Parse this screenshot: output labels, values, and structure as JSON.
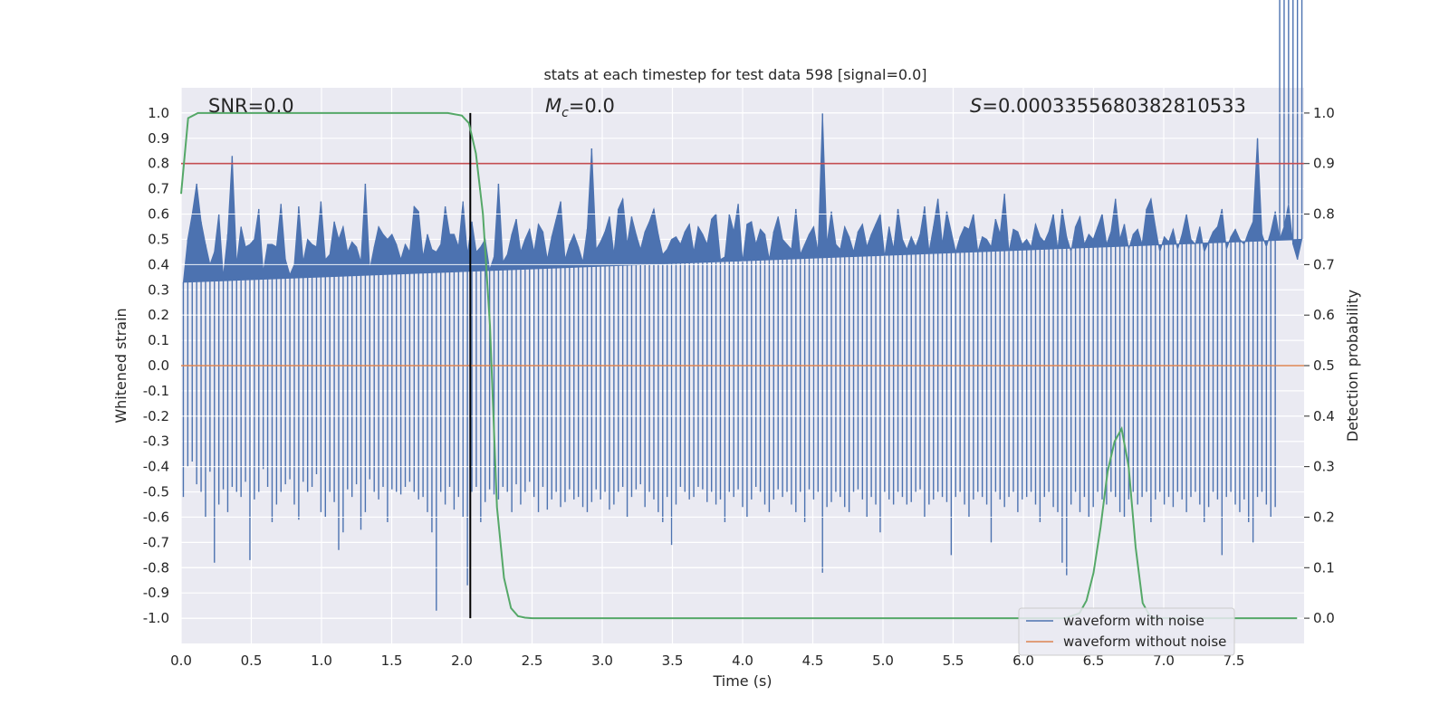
{
  "chart_data": {
    "type": "line",
    "title": "stats at each timestep for test data 598 [signal=0.0]",
    "xlabel": "Time (s)",
    "ylabel": "Whitened strain",
    "y2label": "Detection probability",
    "xlim": [
      0.0,
      8.0
    ],
    "ylim": [
      -1.1,
      1.1
    ],
    "y2lim": [
      -0.05,
      1.05
    ],
    "xticks": [
      "0.0",
      "0.5",
      "1.0",
      "1.5",
      "2.0",
      "2.5",
      "3.0",
      "3.5",
      "4.0",
      "4.5",
      "5.0",
      "5.5",
      "6.0",
      "6.5",
      "7.0",
      "7.5"
    ],
    "yticks": [
      "1.0",
      "0.9",
      "0.8",
      "0.7",
      "0.6",
      "0.5",
      "0.4",
      "0.3",
      "0.2",
      "0.1",
      "0.0",
      "-0.1",
      "-0.2",
      "-0.3",
      "-0.4",
      "-0.5",
      "-0.6",
      "-0.7",
      "-0.8",
      "-0.9",
      "-1.0"
    ],
    "y2ticks": [
      "1.0",
      "0.9",
      "0.8",
      "0.7",
      "0.6",
      "0.5",
      "0.4",
      "0.3",
      "0.2",
      "0.1",
      "0.0"
    ],
    "annotations": {
      "snr": "SNR=0.0",
      "mc_symbol": "M",
      "mc_sub": "c",
      "mc_value": "=0.0",
      "s_symbol": "S",
      "s_value": "=0.0003355680382810533"
    },
    "threshold": {
      "name": "threshold",
      "y2": 0.9,
      "color": "#c44e52"
    },
    "marker_line": {
      "name": "marker",
      "x": 2.06,
      "color": "#000000"
    },
    "noise_envelope": {
      "name": "waveform with noise",
      "color": "#4c72b0",
      "top": [
        0.33,
        0.5,
        0.6,
        0.72,
        0.57,
        0.48,
        0.4,
        0.45,
        0.6,
        0.35,
        0.52,
        0.83,
        0.4,
        0.55,
        0.47,
        0.48,
        0.5,
        0.62,
        0.37,
        0.48,
        0.48,
        0.47,
        0.64,
        0.42,
        0.36,
        0.4,
        0.63,
        0.41,
        0.5,
        0.48,
        0.47,
        0.65,
        0.42,
        0.44,
        0.57,
        0.5,
        0.55,
        0.45,
        0.49,
        0.47,
        0.41,
        0.72,
        0.38,
        0.47,
        0.55,
        0.52,
        0.5,
        0.52,
        0.48,
        0.42,
        0.48,
        0.45,
        0.63,
        0.61,
        0.43,
        0.52,
        0.46,
        0.45,
        0.48,
        0.63,
        0.52,
        0.52,
        0.47,
        0.65,
        0.44,
        0.57,
        0.45,
        0.47,
        0.5,
        0.38,
        0.43,
        0.72,
        0.41,
        0.44,
        0.52,
        0.58,
        0.45,
        0.5,
        0.54,
        0.45,
        0.56,
        0.53,
        0.42,
        0.51,
        0.58,
        0.65,
        0.42,
        0.48,
        0.52,
        0.47,
        0.41,
        0.54,
        0.86,
        0.46,
        0.49,
        0.53,
        0.59,
        0.44,
        0.62,
        0.66,
        0.48,
        0.59,
        0.52,
        0.46,
        0.53,
        0.57,
        0.62,
        0.52,
        0.44,
        0.46,
        0.5,
        0.51,
        0.48,
        0.53,
        0.56,
        0.45,
        0.55,
        0.52,
        0.48,
        0.58,
        0.6,
        0.42,
        0.43,
        0.6,
        0.53,
        0.64,
        0.41,
        0.56,
        0.57,
        0.48,
        0.54,
        0.52,
        0.42,
        0.53,
        0.59,
        0.5,
        0.48,
        0.46,
        0.62,
        0.44,
        0.48,
        0.52,
        0.55,
        0.45,
        1.0,
        0.48,
        0.61,
        0.48,
        0.46,
        0.55,
        0.51,
        0.45,
        0.53,
        0.56,
        0.47,
        0.52,
        0.56,
        0.6,
        0.43,
        0.55,
        0.46,
        0.62,
        0.5,
        0.46,
        0.51,
        0.47,
        0.52,
        0.63,
        0.45,
        0.55,
        0.66,
        0.48,
        0.61,
        0.53,
        0.45,
        0.51,
        0.55,
        0.54,
        0.6,
        0.45,
        0.51,
        0.5,
        0.47,
        0.58,
        0.52,
        0.68,
        0.45,
        0.54,
        0.53,
        0.48,
        0.5,
        0.47,
        0.56,
        0.51,
        0.49,
        0.53,
        0.6,
        0.46,
        0.62,
        0.51,
        0.45,
        0.55,
        0.59,
        0.48,
        0.52,
        0.5,
        0.55,
        0.6,
        0.48,
        0.53,
        0.66,
        0.5,
        0.56,
        0.46,
        0.52,
        0.54,
        0.48,
        0.62,
        0.66,
        0.55,
        0.45,
        0.51,
        0.49,
        0.54,
        0.46,
        0.52,
        0.6,
        0.5,
        0.48,
        0.55,
        0.45,
        0.49,
        0.53,
        0.55,
        0.62,
        0.46,
        0.51,
        0.54,
        0.5,
        0.48,
        0.53,
        0.57,
        0.9,
        0.52,
        0.47,
        0.53,
        0.61,
        0.5,
        0.55,
        0.64,
        0.48,
        0.42,
        0.5
      ],
      "bottom": [
        -0.52,
        -0.4,
        -0.38,
        -0.47,
        -0.5,
        -0.6,
        -0.42,
        -0.78,
        -0.55,
        -0.49,
        -0.58,
        -0.48,
        -0.5,
        -0.52,
        -0.46,
        -0.77,
        -0.53,
        -0.5,
        -0.41,
        -0.48,
        -0.62,
        -0.55,
        -0.5,
        -0.47,
        -0.45,
        -0.55,
        -0.61,
        -0.46,
        -0.5,
        -0.48,
        -0.43,
        -0.58,
        -0.6,
        -0.5,
        -0.54,
        -0.73,
        -0.66,
        -0.49,
        -0.52,
        -0.47,
        -0.65,
        -0.58,
        -0.45,
        -0.5,
        -0.53,
        -0.48,
        -0.62,
        -0.49,
        -0.5,
        -0.51,
        -0.48,
        -0.46,
        -0.5,
        -0.53,
        -0.52,
        -0.58,
        -0.66,
        -0.97,
        -0.5,
        -0.55,
        -0.48,
        -0.57,
        -0.52,
        -0.6,
        -0.87,
        -0.5,
        -0.48,
        -0.62,
        -0.54,
        -0.49,
        -0.51,
        -0.53,
        -0.48,
        -0.5,
        -0.58,
        -0.47,
        -0.55,
        -0.5,
        -0.46,
        -0.52,
        -0.58,
        -0.48,
        -0.57,
        -0.53,
        -0.5,
        -0.56,
        -0.54,
        -0.49,
        -0.53,
        -0.52,
        -0.56,
        -0.58,
        -0.54,
        -0.49,
        -0.53,
        -0.5,
        -0.57,
        -0.55,
        -0.5,
        -0.48,
        -0.6,
        -0.52,
        -0.49,
        -0.47,
        -0.56,
        -0.5,
        -0.53,
        -0.58,
        -0.62,
        -0.52,
        -0.71,
        -0.55,
        -0.48,
        -0.5,
        -0.53,
        -0.52,
        -0.48,
        -0.49,
        -0.54,
        -0.5,
        -0.55,
        -0.53,
        -0.62,
        -0.5,
        -0.52,
        -0.49,
        -0.56,
        -0.6,
        -0.53,
        -0.48,
        -0.5,
        -0.55,
        -0.58,
        -0.53,
        -0.49,
        -0.52,
        -0.5,
        -0.55,
        -0.58,
        -0.5,
        -0.62,
        -0.49,
        -0.53,
        -0.5,
        -0.82,
        -0.56,
        -0.54,
        -0.5,
        -0.52,
        -0.56,
        -0.58,
        -0.5,
        -0.49,
        -0.53,
        -0.6,
        -0.52,
        -0.55,
        -0.66,
        -0.5,
        -0.53,
        -0.55,
        -0.5,
        -0.52,
        -0.55,
        -0.54,
        -0.5,
        -0.49,
        -0.6,
        -0.55,
        -0.53,
        -0.5,
        -0.52,
        -0.54,
        -0.75,
        -0.52,
        -0.5,
        -0.55,
        -0.6,
        -0.53,
        -0.5,
        -0.52,
        -0.55,
        -0.7,
        -0.5,
        -0.53,
        -0.56,
        -0.52,
        -0.5,
        -0.58,
        -0.53,
        -0.52,
        -0.5,
        -0.55,
        -0.62,
        -0.52,
        -0.5,
        -0.56,
        -0.58,
        -0.78,
        -0.83,
        -0.55,
        -0.5,
        -0.58,
        -0.52,
        -0.6,
        -0.56,
        -0.5,
        -0.53,
        -0.55,
        -0.5,
        -0.52,
        -0.58,
        -0.6,
        -0.53,
        -0.5,
        -0.55,
        -0.52,
        -0.5,
        -0.62,
        -0.53,
        -0.5,
        -0.55,
        -0.52,
        -0.56,
        -0.5,
        -0.53,
        -0.58,
        -0.52,
        -0.5,
        -0.55,
        -0.62,
        -0.56,
        -0.5,
        -0.53,
        -0.75,
        -0.52,
        -0.5,
        -0.55,
        -0.58,
        -0.53,
        -0.62,
        -0.7,
        -0.52,
        -0.5,
        -0.55,
        -0.6,
        -0.56
      ]
    },
    "clean_waveform": {
      "name": "waveform without noise",
      "color": "#dd8452",
      "value": 0.0
    },
    "probability": {
      "name": "detection probability",
      "color": "#55a868",
      "x": [
        0.0,
        0.05,
        0.12,
        0.2,
        0.5,
        1.0,
        1.5,
        1.9,
        2.0,
        2.05,
        2.1,
        2.15,
        2.2,
        2.25,
        2.3,
        2.35,
        2.4,
        2.45,
        2.5,
        2.55,
        3.0,
        4.0,
        5.0,
        6.0,
        6.3,
        6.4,
        6.45,
        6.5,
        6.55,
        6.6,
        6.65,
        6.7,
        6.75,
        6.8,
        6.85,
        6.9,
        6.95,
        7.0,
        7.5,
        7.95
      ],
      "y": [
        0.84,
        0.99,
        1.0,
        1.0,
        1.0,
        1.0,
        1.0,
        1.0,
        0.995,
        0.98,
        0.92,
        0.8,
        0.58,
        0.22,
        0.08,
        0.02,
        0.004,
        0.001,
        0.0,
        0.0,
        0.0,
        0.0,
        0.0,
        0.0,
        0.0,
        0.01,
        0.035,
        0.09,
        0.18,
        0.29,
        0.35,
        0.375,
        0.3,
        0.14,
        0.03,
        0.005,
        0.0,
        0.0,
        0.0,
        0.0
      ]
    },
    "legend": {
      "placement": "lower-right",
      "entries": [
        "waveform with noise",
        "waveform without noise"
      ]
    }
  }
}
